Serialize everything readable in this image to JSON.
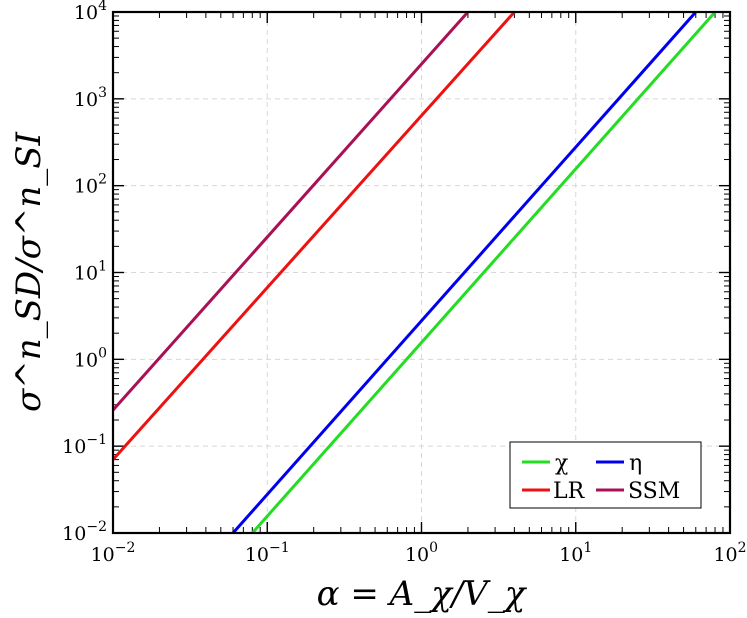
{
  "chart_data": {
    "type": "line",
    "xlabel": "α = A_χ/V_χ",
    "ylabel": "σ^n_SD/σ^n_SI",
    "xscale": "log",
    "yscale": "log",
    "xlim": [
      0.01,
      100
    ],
    "ylim": [
      0.01,
      10000
    ],
    "grid": true,
    "legend_placement": "bottom-right",
    "x_ticks": [
      {
        "base": "10",
        "exp": "−2",
        "value": 0.01
      },
      {
        "base": "10",
        "exp": "−1",
        "value": 0.1
      },
      {
        "base": "10",
        "exp": "0",
        "value": 1
      },
      {
        "base": "10",
        "exp": "1",
        "value": 10
      },
      {
        "base": "10",
        "exp": "2",
        "value": 100
      }
    ],
    "y_ticks": [
      {
        "base": "10",
        "exp": "−2",
        "value": 0.01
      },
      {
        "base": "10",
        "exp": "−1",
        "value": 0.1
      },
      {
        "base": "10",
        "exp": "0",
        "value": 1
      },
      {
        "base": "10",
        "exp": "1",
        "value": 10
      },
      {
        "base": "10",
        "exp": "2",
        "value": 100
      },
      {
        "base": "10",
        "exp": "3",
        "value": 1000
      },
      {
        "base": "10",
        "exp": "4",
        "value": 10000
      }
    ],
    "series": [
      {
        "name": "χ",
        "color": "#22dd22",
        "x": [
          0.08,
          80
        ],
        "y": [
          0.01,
          10000
        ]
      },
      {
        "name": "η",
        "color": "#0000ee",
        "x": [
          0.06,
          60
        ],
        "y": [
          0.01,
          10000
        ]
      },
      {
        "name": "LR",
        "color": "#ee1111",
        "x": [
          0.01,
          4
        ],
        "y": [
          0.07,
          10000
        ]
      },
      {
        "name": "SSM",
        "color": "#aa1155",
        "x": [
          0.01,
          2
        ],
        "y": [
          0.26,
          10000
        ]
      }
    ]
  }
}
